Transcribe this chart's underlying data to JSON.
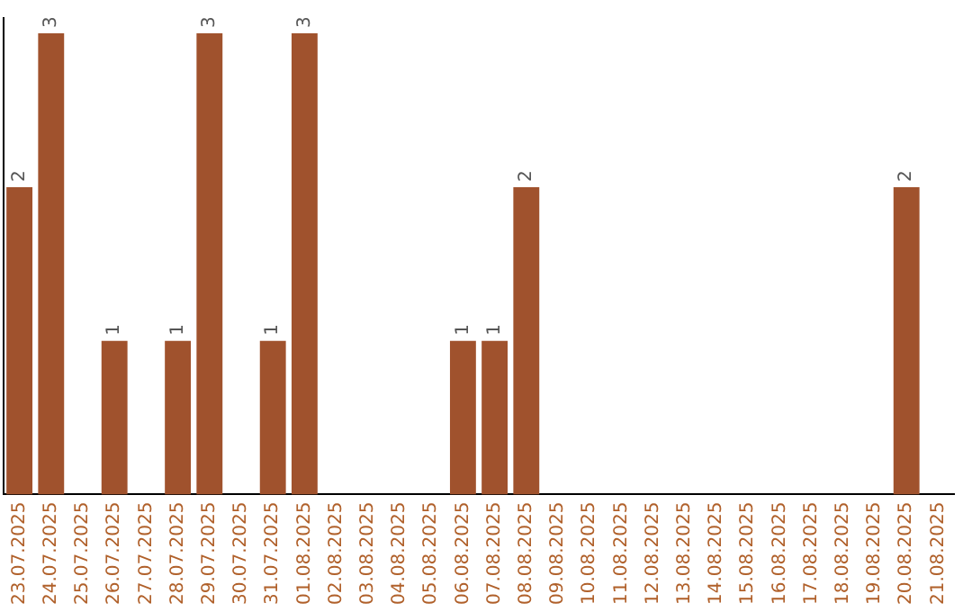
{
  "chart_data": {
    "type": "bar",
    "categories": [
      "23.07.2025",
      "24.07.2025",
      "25.07.2025",
      "26.07.2025",
      "27.07.2025",
      "28.07.2025",
      "29.07.2025",
      "30.07.2025",
      "31.07.2025",
      "01.08.2025",
      "02.08.2025",
      "03.08.2025",
      "04.08.2025",
      "05.08.2025",
      "06.08.2025",
      "07.08.2025",
      "08.08.2025",
      "09.08.2025",
      "10.08.2025",
      "11.08.2025",
      "12.08.2025",
      "13.08.2025",
      "14.08.2025",
      "15.08.2025",
      "16.08.2025",
      "17.08.2025",
      "18.08.2025",
      "19.08.2025",
      "20.08.2025",
      "21.08.2025"
    ],
    "values": [
      2,
      3,
      0,
      1,
      0,
      1,
      3,
      0,
      1,
      3,
      0,
      0,
      0,
      0,
      1,
      1,
      2,
      0,
      0,
      0,
      0,
      0,
      0,
      0,
      0,
      0,
      0,
      0,
      2,
      0
    ],
    "value_labels": [
      "2",
      "3",
      null,
      "1",
      null,
      "1",
      "3",
      null,
      "1",
      "3",
      null,
      null,
      null,
      null,
      "1",
      "1",
      "2",
      null,
      null,
      null,
      null,
      null,
      null,
      null,
      null,
      null,
      null,
      null,
      "2",
      null
    ],
    "color": "#a0522d",
    "ylim": [
      0,
      3.1
    ],
    "tick_labels": "x",
    "grid": false,
    "legend": false
  }
}
